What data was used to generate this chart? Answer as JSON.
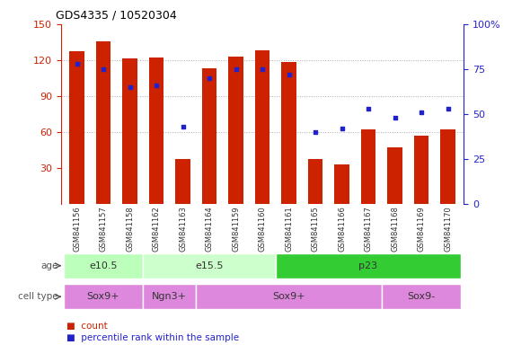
{
  "title": "GDS4335 / 10520304",
  "samples": [
    "GSM841156",
    "GSM841157",
    "GSM841158",
    "GSM841162",
    "GSM841163",
    "GSM841164",
    "GSM841159",
    "GSM841160",
    "GSM841161",
    "GSM841165",
    "GSM841166",
    "GSM841167",
    "GSM841168",
    "GSM841169",
    "GSM841170"
  ],
  "counts": [
    127,
    136,
    121,
    122,
    37,
    113,
    123,
    128,
    118,
    37,
    33,
    62,
    47,
    57,
    62
  ],
  "percentile_ranks": [
    78,
    75,
    65,
    66,
    43,
    70,
    75,
    75,
    72,
    40,
    42,
    53,
    48,
    51,
    53
  ],
  "ylim_left": [
    0,
    150
  ],
  "ylim_right": [
    0,
    100
  ],
  "yticks_left": [
    30,
    60,
    90,
    120,
    150
  ],
  "yticks_right": [
    0,
    25,
    50,
    75,
    100
  ],
  "bar_color": "#cc2200",
  "dot_color": "#2222cc",
  "age_groups": [
    {
      "label": "e10.5",
      "start": 0,
      "end": 3,
      "color": "#bbffbb"
    },
    {
      "label": "e15.5",
      "start": 3,
      "end": 8,
      "color": "#ccffcc"
    },
    {
      "label": "p23",
      "start": 8,
      "end": 15,
      "color": "#33cc33"
    }
  ],
  "cell_type_groups": [
    {
      "label": "Sox9+",
      "start": 0,
      "end": 3
    },
    {
      "label": "Ngn3+",
      "start": 3,
      "end": 5
    },
    {
      "label": "Sox9+",
      "start": 5,
      "end": 12
    },
    {
      "label": "Sox9-",
      "start": 12,
      "end": 15
    }
  ],
  "cell_color": "#dd88dd",
  "left_axis_color": "#cc2200",
  "right_axis_color": "#2222cc",
  "tick_label_color": "#888888",
  "label_row_bg": "#bbbbbb",
  "grid_yticks": [
    60,
    90,
    120
  ]
}
